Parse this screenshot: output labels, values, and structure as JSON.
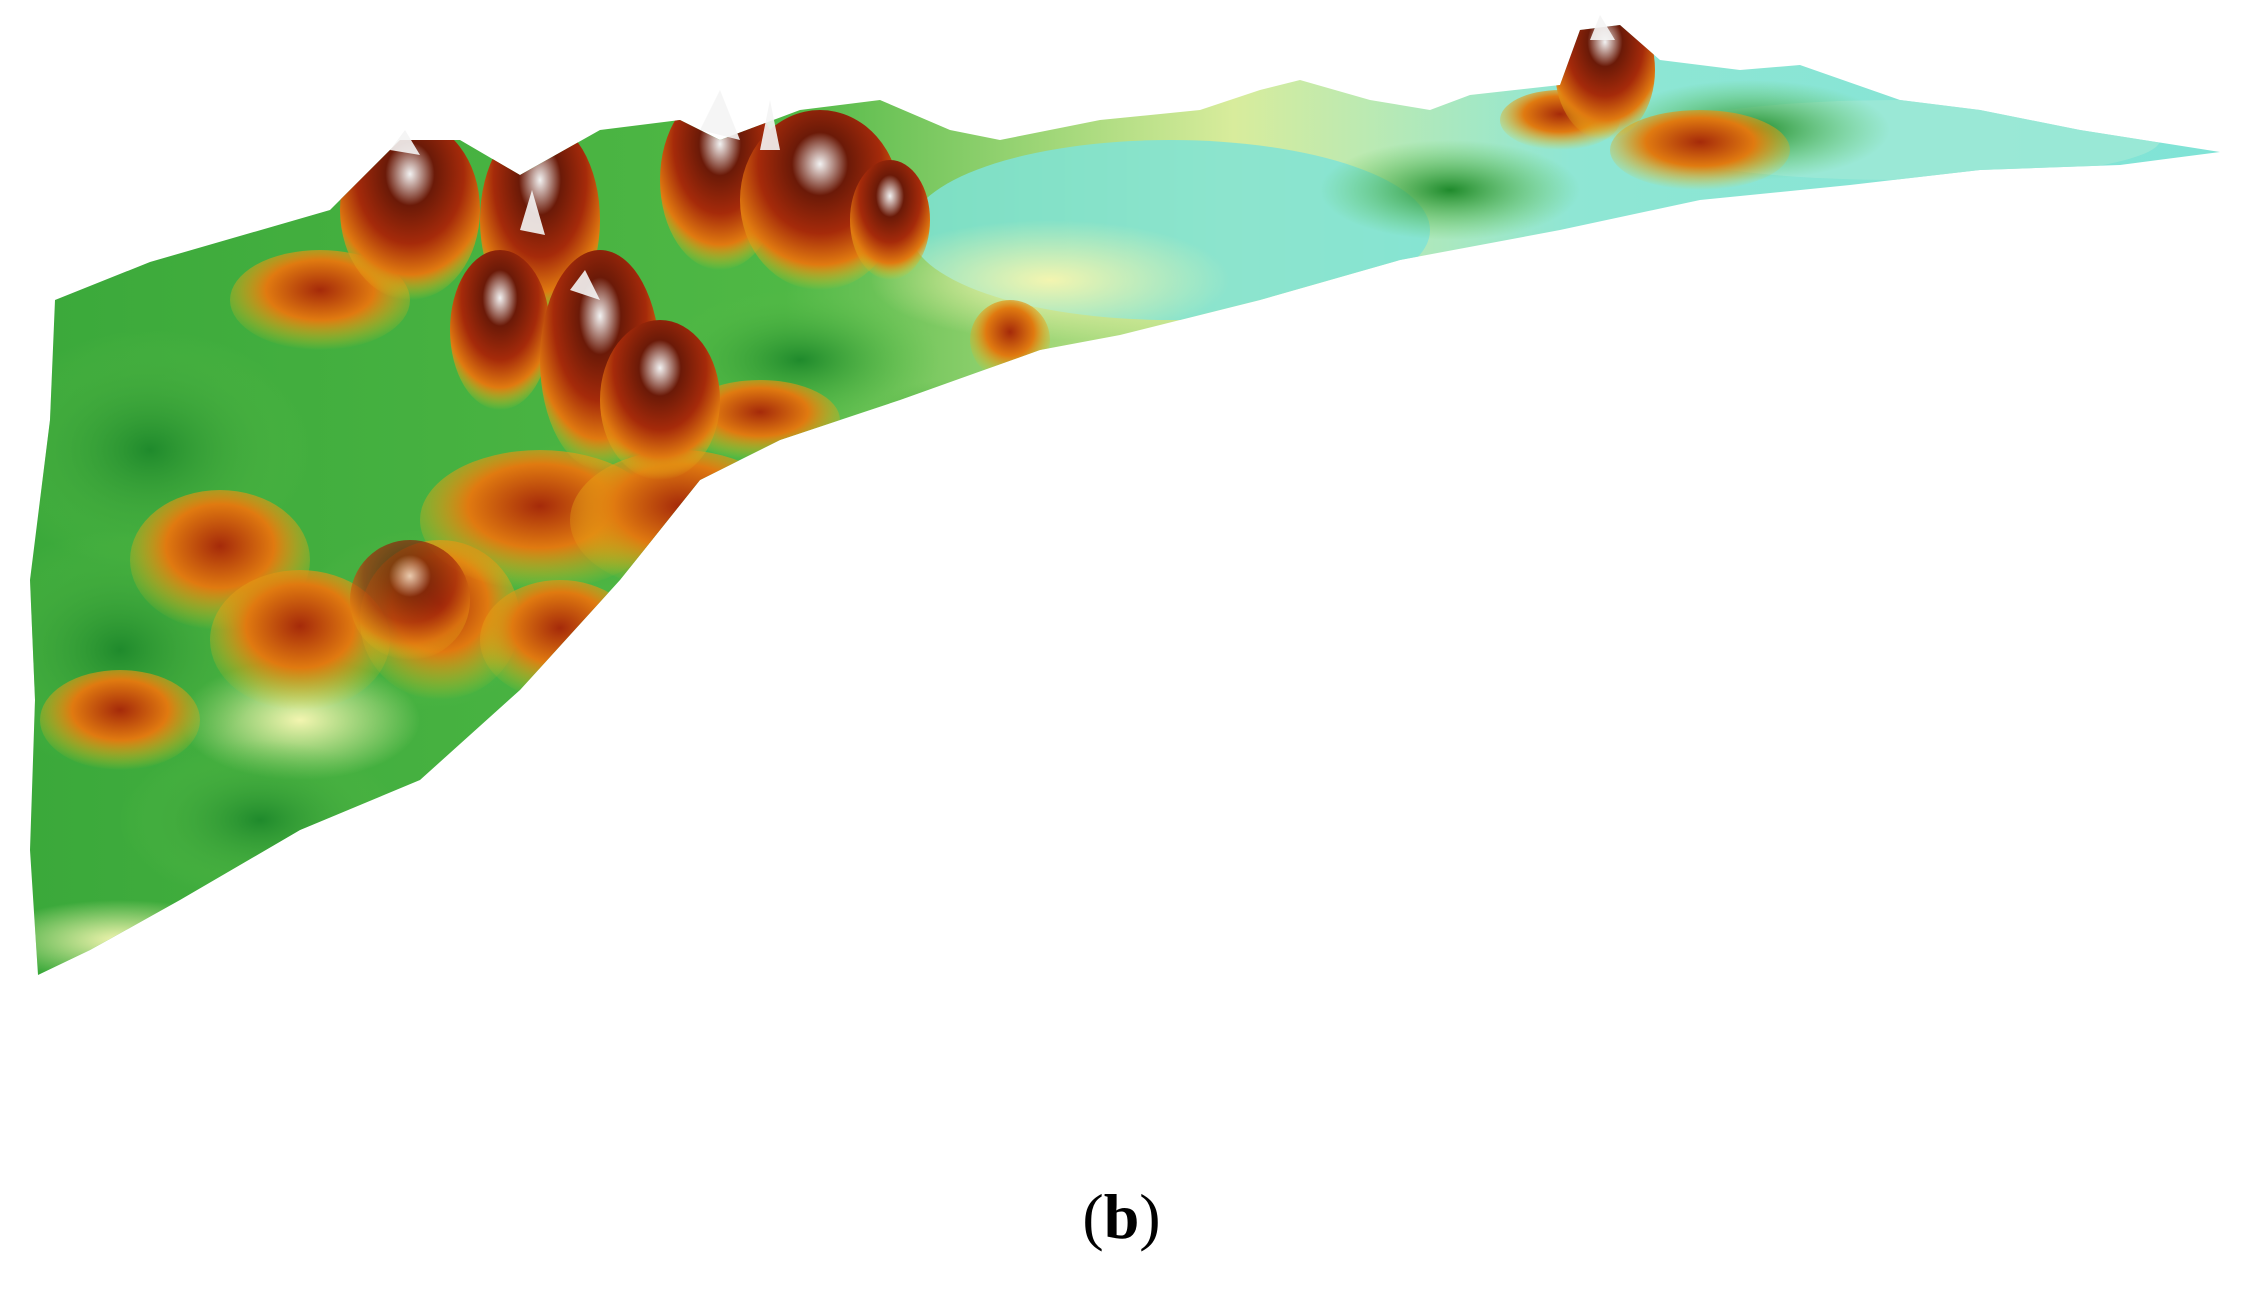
{
  "figure": {
    "panel_label": {
      "open": "(",
      "letter": "b",
      "close": ")"
    },
    "colors": {
      "water": "#7fe3d6",
      "lowland": "#f3f5b0",
      "green_light": "#5fc04a",
      "green_dark": "#1f8a2c",
      "yellow": "#e8c51a",
      "orange": "#e07a10",
      "red_brown": "#a52a0a",
      "dark_brown": "#6b1a08",
      "snow": "#f2f2f2"
    },
    "image_semantics": "terrain-elevation-3d-perspective"
  }
}
